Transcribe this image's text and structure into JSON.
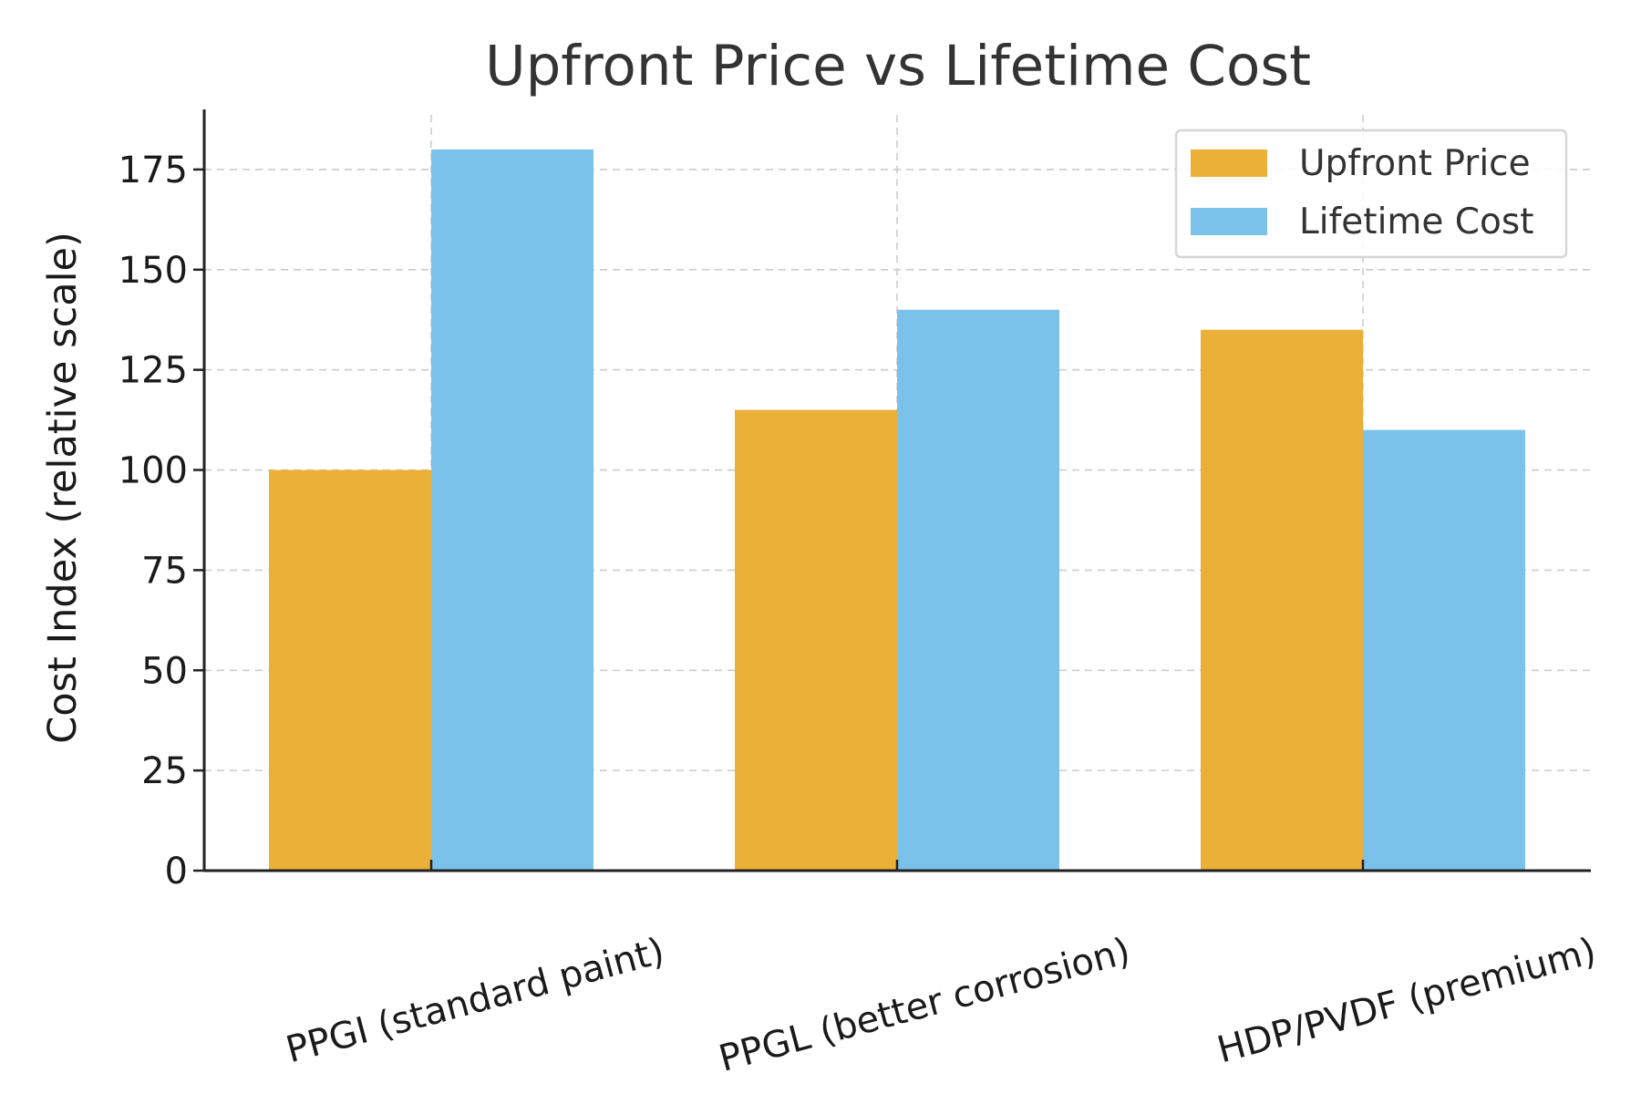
{
  "chart_data": {
    "type": "bar",
    "title": "Upfront Price vs Lifetime Cost",
    "xlabel": "",
    "ylabel": "Cost Index (relative scale)",
    "categories": [
      "PPGI (standard paint)",
      "PPGL (better corrosion)",
      "HDP/PVDF (premium)"
    ],
    "series": [
      {
        "name": "Upfront Price",
        "color": "#EAB037",
        "values": [
          100,
          115,
          135
        ]
      },
      {
        "name": "Lifetime Cost",
        "color": "#7BC2EB",
        "values": [
          180,
          140,
          110
        ]
      }
    ],
    "ylim": [
      0,
      190
    ],
    "yticks": [
      0,
      25,
      50,
      75,
      100,
      125,
      150,
      175
    ],
    "grid": true,
    "legend_position": "top-right"
  }
}
